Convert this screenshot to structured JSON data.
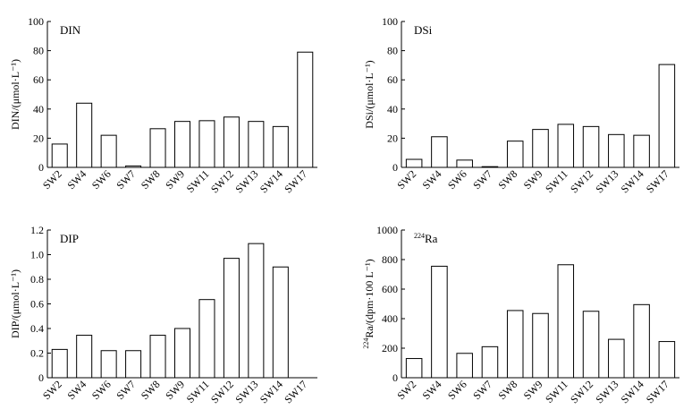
{
  "chart_data": [
    {
      "type": "bar",
      "title": "DIN",
      "title_sup": "",
      "ylabel": "DIN/(μmol·L⁻¹)",
      "ylabel_sup": "",
      "categories": [
        "SW2",
        "SW4",
        "SW6",
        "SW7",
        "SW8",
        "SW9",
        "SW11",
        "SW12",
        "SW13",
        "SW14",
        "SW17"
      ],
      "values": [
        16,
        44,
        22,
        1,
        26.5,
        31.5,
        32,
        34.5,
        31.5,
        28,
        79
      ],
      "ylim": [
        0,
        100
      ],
      "yticks": [
        "0",
        "20",
        "40",
        "60",
        "80",
        "100"
      ],
      "grid": false
    },
    {
      "type": "bar",
      "title": "DSi",
      "title_sup": "",
      "ylabel": "DSi/(μmol·L⁻¹)",
      "ylabel_sup": "",
      "categories": [
        "SW2",
        "SW4",
        "SW6",
        "SW7",
        "SW8",
        "SW9",
        "SW11",
        "SW12",
        "SW13",
        "SW14",
        "SW17"
      ],
      "values": [
        5.5,
        21,
        5,
        0.5,
        18,
        26,
        29.5,
        28,
        22.5,
        22,
        70.5
      ],
      "ylim": [
        0,
        100
      ],
      "yticks": [
        "0",
        "20",
        "40",
        "60",
        "80",
        "100"
      ],
      "grid": false
    },
    {
      "type": "bar",
      "title": "DIP",
      "title_sup": "",
      "ylabel": "DIP/(μmol·L⁻¹)",
      "ylabel_sup": "",
      "categories": [
        "SW2",
        "SW4",
        "SW6",
        "SW7",
        "SW8",
        "SW9",
        "SW11",
        "SW12",
        "SW13",
        "SW14",
        "SW17"
      ],
      "values": [
        0.23,
        0.345,
        0.22,
        0.22,
        0.345,
        0.4,
        0.635,
        0.97,
        1.09,
        0.9,
        0
      ],
      "ylim": [
        0,
        1.2
      ],
      "yticks": [
        "0",
        "0.2",
        "0.4",
        "0.6",
        "0.8",
        "1.0",
        "1.2"
      ],
      "grid": false
    },
    {
      "type": "bar",
      "title": "Ra",
      "title_sup": "224",
      "ylabel": "Ra/(dpm·100 L⁻¹)",
      "ylabel_sup": "224",
      "categories": [
        "SW2",
        "SW4",
        "SW6",
        "SW7",
        "SW8",
        "SW9",
        "SW11",
        "SW12",
        "SW13",
        "SW14",
        "SW17"
      ],
      "values": [
        130,
        755,
        165,
        210,
        455,
        435,
        765,
        450,
        260,
        495,
        245
      ],
      "ylim": [
        0,
        1000
      ],
      "yticks": [
        "0",
        "200",
        "400",
        "600",
        "800",
        "1000"
      ],
      "grid": false
    }
  ]
}
